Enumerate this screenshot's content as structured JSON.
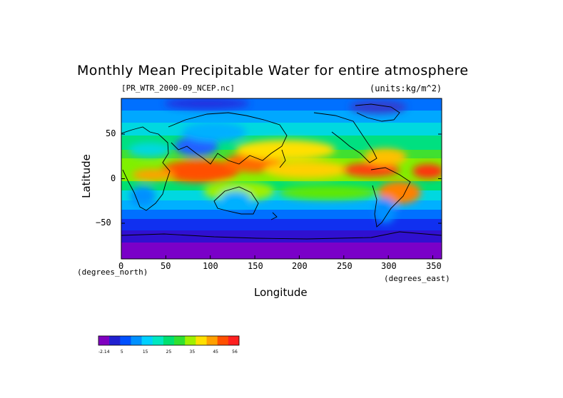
{
  "title": "Monthly Mean Precipitable Water for entire atmosphere",
  "file_label": "[PR_WTR_2000-09_NCEP.nc]",
  "units_label": "(units:kg/m^2)",
  "axes": {
    "x_title": "Longitude",
    "y_title": "Latitude",
    "x_unit": "(degrees_east)",
    "y_unit": "(degrees_north)",
    "x_ticks": [
      "0",
      "50",
      "100",
      "150",
      "200",
      "250",
      "300",
      "350"
    ],
    "y_ticks": [
      "50",
      "0",
      "−50"
    ],
    "x_range": [
      0,
      360
    ],
    "y_range": [
      -90,
      90
    ]
  },
  "colorbar": {
    "labels": [
      "-2.14",
      "5",
      "15",
      "25",
      "35",
      "45",
      "56"
    ],
    "colors": [
      "#8000c0",
      "#2020d0",
      "#0050ff",
      "#0090ff",
      "#00d0ff",
      "#00e8c0",
      "#00e070",
      "#30e030",
      "#a0f000",
      "#ffe000",
      "#ffa000",
      "#ff5000",
      "#ff2020"
    ]
  }
}
